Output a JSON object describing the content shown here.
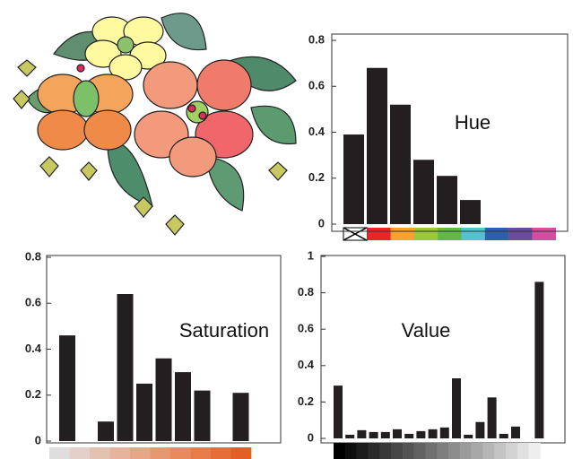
{
  "chart_data": [
    {
      "type": "bar",
      "annotation": "Hue",
      "categories": [
        null,
        null,
        null,
        null,
        null,
        null,
        null,
        null,
        null
      ],
      "values": [
        0.39,
        0.68,
        0.52,
        0.28,
        0.21,
        0.105,
        0,
        0,
        0
      ],
      "color": "#231f20",
      "colorbar": [
        "#ffffff",
        "#e8262a",
        "#f7a12e",
        "#9bc93b",
        "#63b84a",
        "#55c3cf",
        "#2f5fa8",
        "#6a4c9c",
        "#d04fa0"
      ],
      "ylim": [
        0,
        0.8
      ],
      "yticks": [
        0,
        0.2,
        0.4,
        0.6,
        0.8
      ]
    },
    {
      "type": "bar",
      "annotation": "Saturation",
      "categories": [
        null,
        null,
        null,
        null,
        null,
        null,
        null,
        null,
        null,
        null
      ],
      "values": [
        0.46,
        0,
        0.085,
        0.64,
        0.25,
        0.36,
        0.3,
        0.22,
        0,
        0.21
      ],
      "color": "#231f20",
      "colorbar": [
        "#dedede",
        "#e2d0c9",
        "#e4c2b2",
        "#e6b49c",
        "#e7a686",
        "#e89870",
        "#e88a5c",
        "#e77c48",
        "#e66e36",
        "#e45f26"
      ],
      "ylim": [
        0,
        0.8
      ],
      "yticks": [
        0,
        0.2,
        0.4,
        0.6,
        0.8
      ]
    },
    {
      "type": "bar",
      "annotation": "Value",
      "categories": [
        null,
        null,
        null,
        null,
        null,
        null,
        null,
        null,
        null,
        null,
        null,
        null,
        null,
        null,
        null,
        null,
        null,
        null
      ],
      "values": [
        0.29,
        0.02,
        0.045,
        0.035,
        0.035,
        0.05,
        0.025,
        0.04,
        0.05,
        0.06,
        0.33,
        0.02,
        0.09,
        0.225,
        0.025,
        0.065,
        0,
        0.86
      ],
      "color": "#231f20",
      "colorbar": [
        "#000000",
        "#0e0e0e",
        "#1c1c1c",
        "#2a2a2a",
        "#383838",
        "#464646",
        "#545454",
        "#626262",
        "#707070",
        "#7e7e7e",
        "#8c8c8c",
        "#9a9a9a",
        "#a8a8a8",
        "#b6b6b6",
        "#c4c4c4",
        "#d2d2d2",
        "#e0e0e0",
        "#eeeeee"
      ],
      "ylim": [
        0,
        1
      ],
      "yticks": [
        0,
        0.2,
        0.4,
        0.6,
        0.8,
        1
      ]
    }
  ]
}
